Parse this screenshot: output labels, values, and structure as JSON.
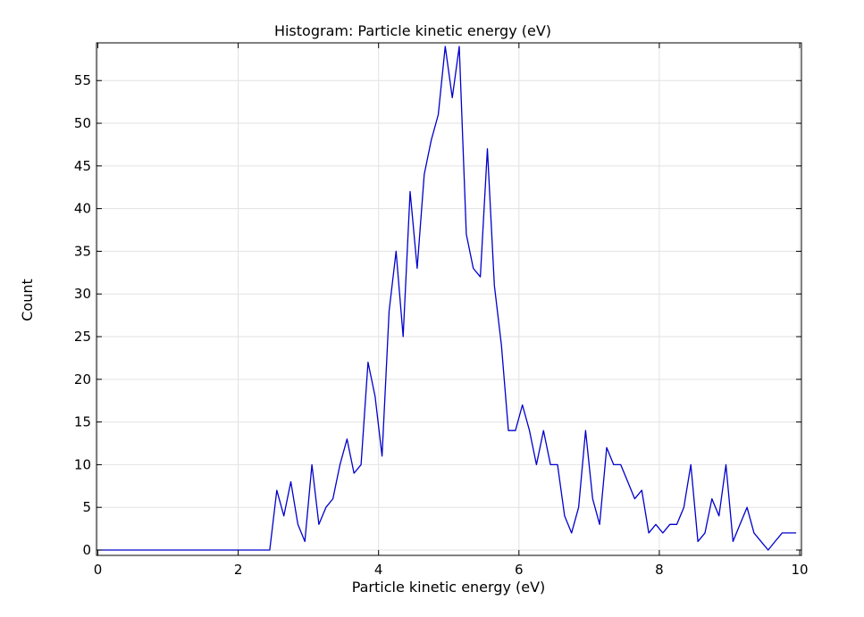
{
  "chart_data": {
    "type": "line",
    "title": "Histogram: Particle kinetic energy (eV)",
    "xlabel": "Particle kinetic energy (eV)",
    "ylabel": "Count",
    "xlim": [
      0,
      10
    ],
    "ylim": [
      0,
      59
    ],
    "x_ticks": [
      "0",
      "2",
      "4",
      "6",
      "8",
      "10"
    ],
    "y_ticks": [
      "0",
      "5",
      "10",
      "15",
      "20",
      "25",
      "30",
      "35",
      "40",
      "45",
      "50",
      "55"
    ],
    "grid": true,
    "line_color": "#0000cc",
    "series": [
      {
        "x": [
          0.0,
          2.45,
          2.55,
          2.65,
          2.75,
          2.85,
          2.95,
          3.05,
          3.15,
          3.25,
          3.35,
          3.45,
          3.55,
          3.65,
          3.75,
          3.85,
          3.95,
          4.05,
          4.15,
          4.25,
          4.35,
          4.45,
          4.55,
          4.65,
          4.75,
          4.85,
          4.95,
          5.05,
          5.15,
          5.25,
          5.35,
          5.45,
          5.55,
          5.65,
          5.75,
          5.85,
          5.95,
          6.05,
          6.15,
          6.25,
          6.35,
          6.45,
          6.55,
          6.65,
          6.75,
          6.85,
          6.95,
          7.05,
          7.15,
          7.25,
          7.35,
          7.45,
          7.55,
          7.65,
          7.75,
          7.85,
          7.95,
          8.05,
          8.15,
          8.25,
          8.35,
          8.45,
          8.55,
          8.65,
          8.75,
          8.85,
          8.95,
          9.05,
          9.15,
          9.25,
          9.35,
          9.45,
          9.55,
          9.65,
          9.75,
          9.85,
          9.95
        ],
        "values": [
          0,
          0,
          7,
          4,
          8,
          3,
          1,
          10,
          3,
          5,
          6,
          10,
          13,
          9,
          10,
          22,
          18,
          11,
          28,
          35,
          25,
          42,
          33,
          44,
          48,
          51,
          59,
          53,
          59,
          37,
          33,
          32,
          47,
          31,
          24,
          14,
          14,
          17,
          14,
          10,
          14,
          10,
          10,
          4,
          2,
          5,
          14,
          6,
          3,
          12,
          10,
          10,
          8,
          6,
          7,
          2,
          3,
          2,
          3,
          3,
          5,
          10,
          1,
          2,
          6,
          4,
          10,
          1,
          3,
          5,
          2,
          1,
          0,
          1,
          2,
          2,
          2
        ]
      }
    ]
  }
}
